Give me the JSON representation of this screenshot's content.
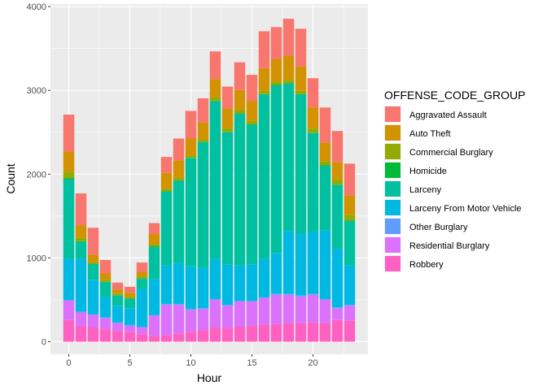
{
  "chart_data": {
    "type": "bar",
    "stacked": true,
    "x": [
      0,
      1,
      2,
      3,
      4,
      5,
      6,
      7,
      8,
      9,
      10,
      11,
      12,
      13,
      14,
      15,
      16,
      17,
      18,
      19,
      20,
      21,
      22,
      23
    ],
    "x_ticks": [
      0,
      5,
      10,
      15,
      20
    ],
    "y_ticks": [
      0,
      1000,
      2000,
      3000,
      4000
    ],
    "xlabel": "Hour",
    "ylabel": "Count",
    "xlim": [
      -1.5,
      24.5
    ],
    "ylim": [
      -150,
      4030
    ],
    "grid": true,
    "legend_title": "OFFENSE_CODE_GROUP",
    "legend_position": "right",
    "series": [
      {
        "name": "Robbery",
        "color": "#FF61C3",
        "values": [
          260,
          180,
          170,
          150,
          130,
          120,
          90,
          70,
          80,
          100,
          120,
          140,
          170,
          160,
          180,
          190,
          200,
          210,
          220,
          220,
          230,
          220,
          260,
          250
        ]
      },
      {
        "name": "Residential Burglary",
        "color": "#DB72FB",
        "values": [
          230,
          170,
          150,
          130,
          90,
          70,
          80,
          240,
          360,
          340,
          260,
          250,
          330,
          270,
          300,
          290,
          320,
          350,
          340,
          320,
          330,
          280,
          140,
          180
        ]
      },
      {
        "name": "Other Burglary",
        "color": "#619CFF",
        "values": [
          10,
          10,
          10,
          10,
          10,
          10,
          10,
          10,
          10,
          10,
          10,
          10,
          10,
          10,
          10,
          10,
          10,
          10,
          10,
          10,
          10,
          10,
          10,
          10
        ]
      },
      {
        "name": "Larceny From Motor Vehicle",
        "color": "#00B9E3",
        "values": [
          490,
          630,
          410,
          240,
          200,
          200,
          450,
          430,
          460,
          490,
          510,
          480,
          480,
          480,
          420,
          430,
          460,
          490,
          750,
          740,
          740,
          820,
          700,
          470
        ]
      },
      {
        "name": "Larceny",
        "color": "#00C19F",
        "values": [
          950,
          200,
          180,
          180,
          120,
          110,
          120,
          380,
          880,
          980,
          1290,
          1500,
          1880,
          1580,
          1810,
          1670,
          1960,
          2000,
          1760,
          1660,
          1180,
          770,
          760,
          530
        ]
      },
      {
        "name": "Homicide",
        "color": "#00BA38",
        "values": [
          10,
          10,
          10,
          5,
          5,
          5,
          5,
          5,
          5,
          5,
          5,
          5,
          5,
          5,
          5,
          5,
          5,
          5,
          5,
          5,
          5,
          5,
          5,
          5
        ]
      },
      {
        "name": "Commercial Burglary",
        "color": "#93AA00",
        "values": [
          80,
          40,
          20,
          20,
          20,
          20,
          20,
          30,
          30,
          30,
          30,
          30,
          40,
          40,
          40,
          40,
          40,
          40,
          40,
          40,
          50,
          50,
          60,
          70
        ]
      },
      {
        "name": "Auto Theft",
        "color": "#D39200",
        "values": [
          240,
          150,
          90,
          80,
          50,
          50,
          60,
          120,
          190,
          210,
          200,
          200,
          220,
          240,
          240,
          240,
          270,
          270,
          290,
          290,
          250,
          220,
          210,
          230
        ]
      },
      {
        "name": "Aggravated Assault",
        "color": "#F8766D",
        "values": [
          440,
          380,
          320,
          160,
          80,
          70,
          110,
          130,
          190,
          260,
          330,
          290,
          330,
          260,
          330,
          310,
          440,
          380,
          440,
          450,
          350,
          420,
          370,
          380
        ]
      }
    ]
  }
}
